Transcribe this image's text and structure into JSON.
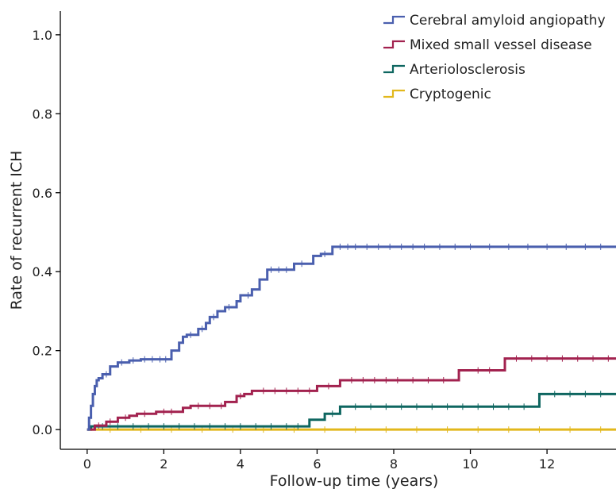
{
  "chart_data": {
    "type": "line",
    "step": true,
    "xlabel": "Follow-up time (years)",
    "ylabel": "Rate of recurrent ICH",
    "xlim": [
      -0.7,
      13.8
    ],
    "ylim": [
      -0.05,
      1.06
    ],
    "xticks": [
      0,
      2,
      4,
      6,
      8,
      10,
      12
    ],
    "yticks": [
      0.0,
      0.2,
      0.4,
      0.6,
      0.8,
      1.0
    ],
    "ytick_labels": [
      "0.0",
      "0.2",
      "0.4",
      "0.6",
      "0.8",
      "1.0"
    ],
    "grid": false,
    "legend_position": "top-right",
    "series": [
      {
        "name": "Cerebral amyloid angiopathy",
        "color": "#4a5fae",
        "x": [
          0,
          0.05,
          0.1,
          0.15,
          0.2,
          0.25,
          0.3,
          0.4,
          0.6,
          0.8,
          1.1,
          1.4,
          2.2,
          2.4,
          2.5,
          2.6,
          2.9,
          3.1,
          3.2,
          3.4,
          3.6,
          3.9,
          4.0,
          4.3,
          4.5,
          4.7,
          5.4,
          5.9,
          6.1,
          6.4,
          13.8
        ],
        "y": [
          0.0,
          0.03,
          0.06,
          0.09,
          0.11,
          0.125,
          0.13,
          0.14,
          0.16,
          0.17,
          0.175,
          0.178,
          0.2,
          0.22,
          0.235,
          0.24,
          0.255,
          0.27,
          0.285,
          0.3,
          0.31,
          0.325,
          0.34,
          0.355,
          0.38,
          0.405,
          0.42,
          0.44,
          0.445,
          0.463,
          0.463
        ],
        "censor_x": [
          0.5,
          0.9,
          1.2,
          1.5,
          1.7,
          1.9,
          2.05,
          2.7,
          3.0,
          3.3,
          3.7,
          4.2,
          4.8,
          5.0,
          5.2,
          5.6,
          6.2,
          6.6,
          6.8,
          7.0,
          7.3,
          7.6,
          7.9,
          8.2,
          8.5,
          8.8,
          9.2,
          9.6,
          10.0,
          10.5,
          11.0,
          11.5,
          12.0,
          12.5,
          13.0,
          13.4
        ]
      },
      {
        "name": "Mixed small vessel disease",
        "color": "#a2224f",
        "x": [
          0,
          0.2,
          0.5,
          0.8,
          1.1,
          1.3,
          1.8,
          2.5,
          2.7,
          3.6,
          3.9,
          4.1,
          4.3,
          6.0,
          6.6,
          9.7,
          10.9,
          13.8
        ],
        "y": [
          0.0,
          0.01,
          0.02,
          0.03,
          0.035,
          0.04,
          0.045,
          0.055,
          0.06,
          0.07,
          0.085,
          0.09,
          0.098,
          0.11,
          0.125,
          0.15,
          0.18,
          0.18
        ],
        "censor_x": [
          0.3,
          0.6,
          1.0,
          1.5,
          2.0,
          2.2,
          2.9,
          3.2,
          3.5,
          4.0,
          4.6,
          4.9,
          5.2,
          5.5,
          5.8,
          6.3,
          6.9,
          7.2,
          7.5,
          7.8,
          8.1,
          8.5,
          8.9,
          9.3,
          10.2,
          10.5,
          11.2,
          11.6,
          12.0,
          12.4,
          12.8,
          13.2,
          13.6
        ]
      },
      {
        "name": "Arteriolosclerosis",
        "color": "#0e6660",
        "x": [
          0,
          0.1,
          5.8,
          6.2,
          6.6,
          11.8,
          13.8
        ],
        "y": [
          0.0,
          0.008,
          0.025,
          0.04,
          0.058,
          0.09,
          0.09
        ],
        "censor_x": [
          0.4,
          0.8,
          1.2,
          1.6,
          2.0,
          2.4,
          2.8,
          3.2,
          3.6,
          4.0,
          4.4,
          4.8,
          5.2,
          5.5,
          6.4,
          7.0,
          7.4,
          7.8,
          8.2,
          8.6,
          9.0,
          9.4,
          9.8,
          10.2,
          10.6,
          11.0,
          11.4,
          12.2,
          12.6,
          13.0,
          13.4
        ]
      },
      {
        "name": "Cryptogenic",
        "color": "#e2b81c",
        "x": [
          0,
          13.8
        ],
        "y": [
          0.0,
          0.0
        ],
        "censor_x": [
          0.6,
          1.4,
          2.2,
          3.0,
          3.8,
          4.6,
          5.4,
          6.2,
          7.0,
          7.8,
          8.6,
          9.4,
          10.2,
          11.0,
          11.8,
          12.6,
          13.4
        ]
      }
    ]
  }
}
